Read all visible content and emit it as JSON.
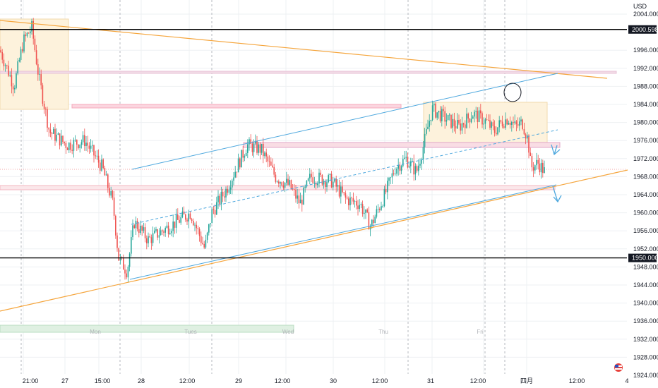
{
  "chart_data": {
    "type": "candlestick",
    "currency": "USD",
    "yaxis": {
      "range": [
        1922.5,
        2005.5
      ],
      "ticks": [
        1924,
        1928,
        1932,
        1936,
        1940,
        1944,
        1948,
        1952,
        1956,
        1960,
        1964,
        1968,
        1972,
        1976,
        1980,
        1984,
        1988,
        1992,
        1996,
        2004
      ]
    },
    "xaxis": {
      "ticks": [
        "21:00",
        "27",
        "15:00",
        "28",
        "12:00",
        "29",
        "12:00",
        "30",
        "12:00",
        "31",
        "12:00",
        "四月",
        "12:00",
        "4"
      ]
    },
    "day_labels": [
      "Mon",
      "Tues",
      "Wed",
      "Thu",
      "Fri"
    ],
    "price_tags": [
      {
        "label": "2000.598",
        "value": 2000.6
      },
      {
        "label": "1950.000",
        "value": 1950.0
      }
    ],
    "horizontal_levels": [
      2000.6,
      1950.0
    ],
    "colors": {
      "up": "#26a69a",
      "down": "#ef5350",
      "trendline_orange": "#f7a23c",
      "channel_blue": "#4ea8de",
      "level": "#000000"
    },
    "price_path": [
      [
        0,
        1996
      ],
      [
        20,
        1988
      ],
      [
        33,
        1998
      ],
      [
        45,
        2001
      ],
      [
        55,
        1990
      ],
      [
        70,
        1978
      ],
      [
        95,
        1975
      ],
      [
        120,
        1976
      ],
      [
        145,
        1970
      ],
      [
        160,
        1962
      ],
      [
        168,
        1950
      ],
      [
        180,
        1947
      ],
      [
        190,
        1958
      ],
      [
        210,
        1954
      ],
      [
        240,
        1957
      ],
      [
        270,
        1960
      ],
      [
        290,
        1952
      ],
      [
        300,
        1960
      ],
      [
        320,
        1965
      ],
      [
        335,
        1970
      ],
      [
        350,
        1975
      ],
      [
        370,
        1974
      ],
      [
        390,
        1968
      ],
      [
        410,
        1966
      ],
      [
        425,
        1962
      ],
      [
        440,
        1968
      ],
      [
        470,
        1967
      ],
      [
        490,
        1963
      ],
      [
        510,
        1962
      ],
      [
        525,
        1957
      ],
      [
        545,
        1964
      ],
      [
        560,
        1970
      ],
      [
        575,
        1972
      ],
      [
        590,
        1969
      ],
      [
        600,
        1975
      ],
      [
        612,
        1983
      ],
      [
        630,
        1981
      ],
      [
        650,
        1979
      ],
      [
        670,
        1982
      ],
      [
        690,
        1980
      ],
      [
        700,
        1978
      ],
      [
        710,
        1980
      ],
      [
        720,
        1981
      ],
      [
        730,
        1979
      ],
      [
        740,
        1980
      ],
      [
        748,
        1976
      ],
      [
        752,
        1970
      ],
      [
        762,
        1971
      ],
      [
        772,
        1969
      ]
    ]
  }
}
